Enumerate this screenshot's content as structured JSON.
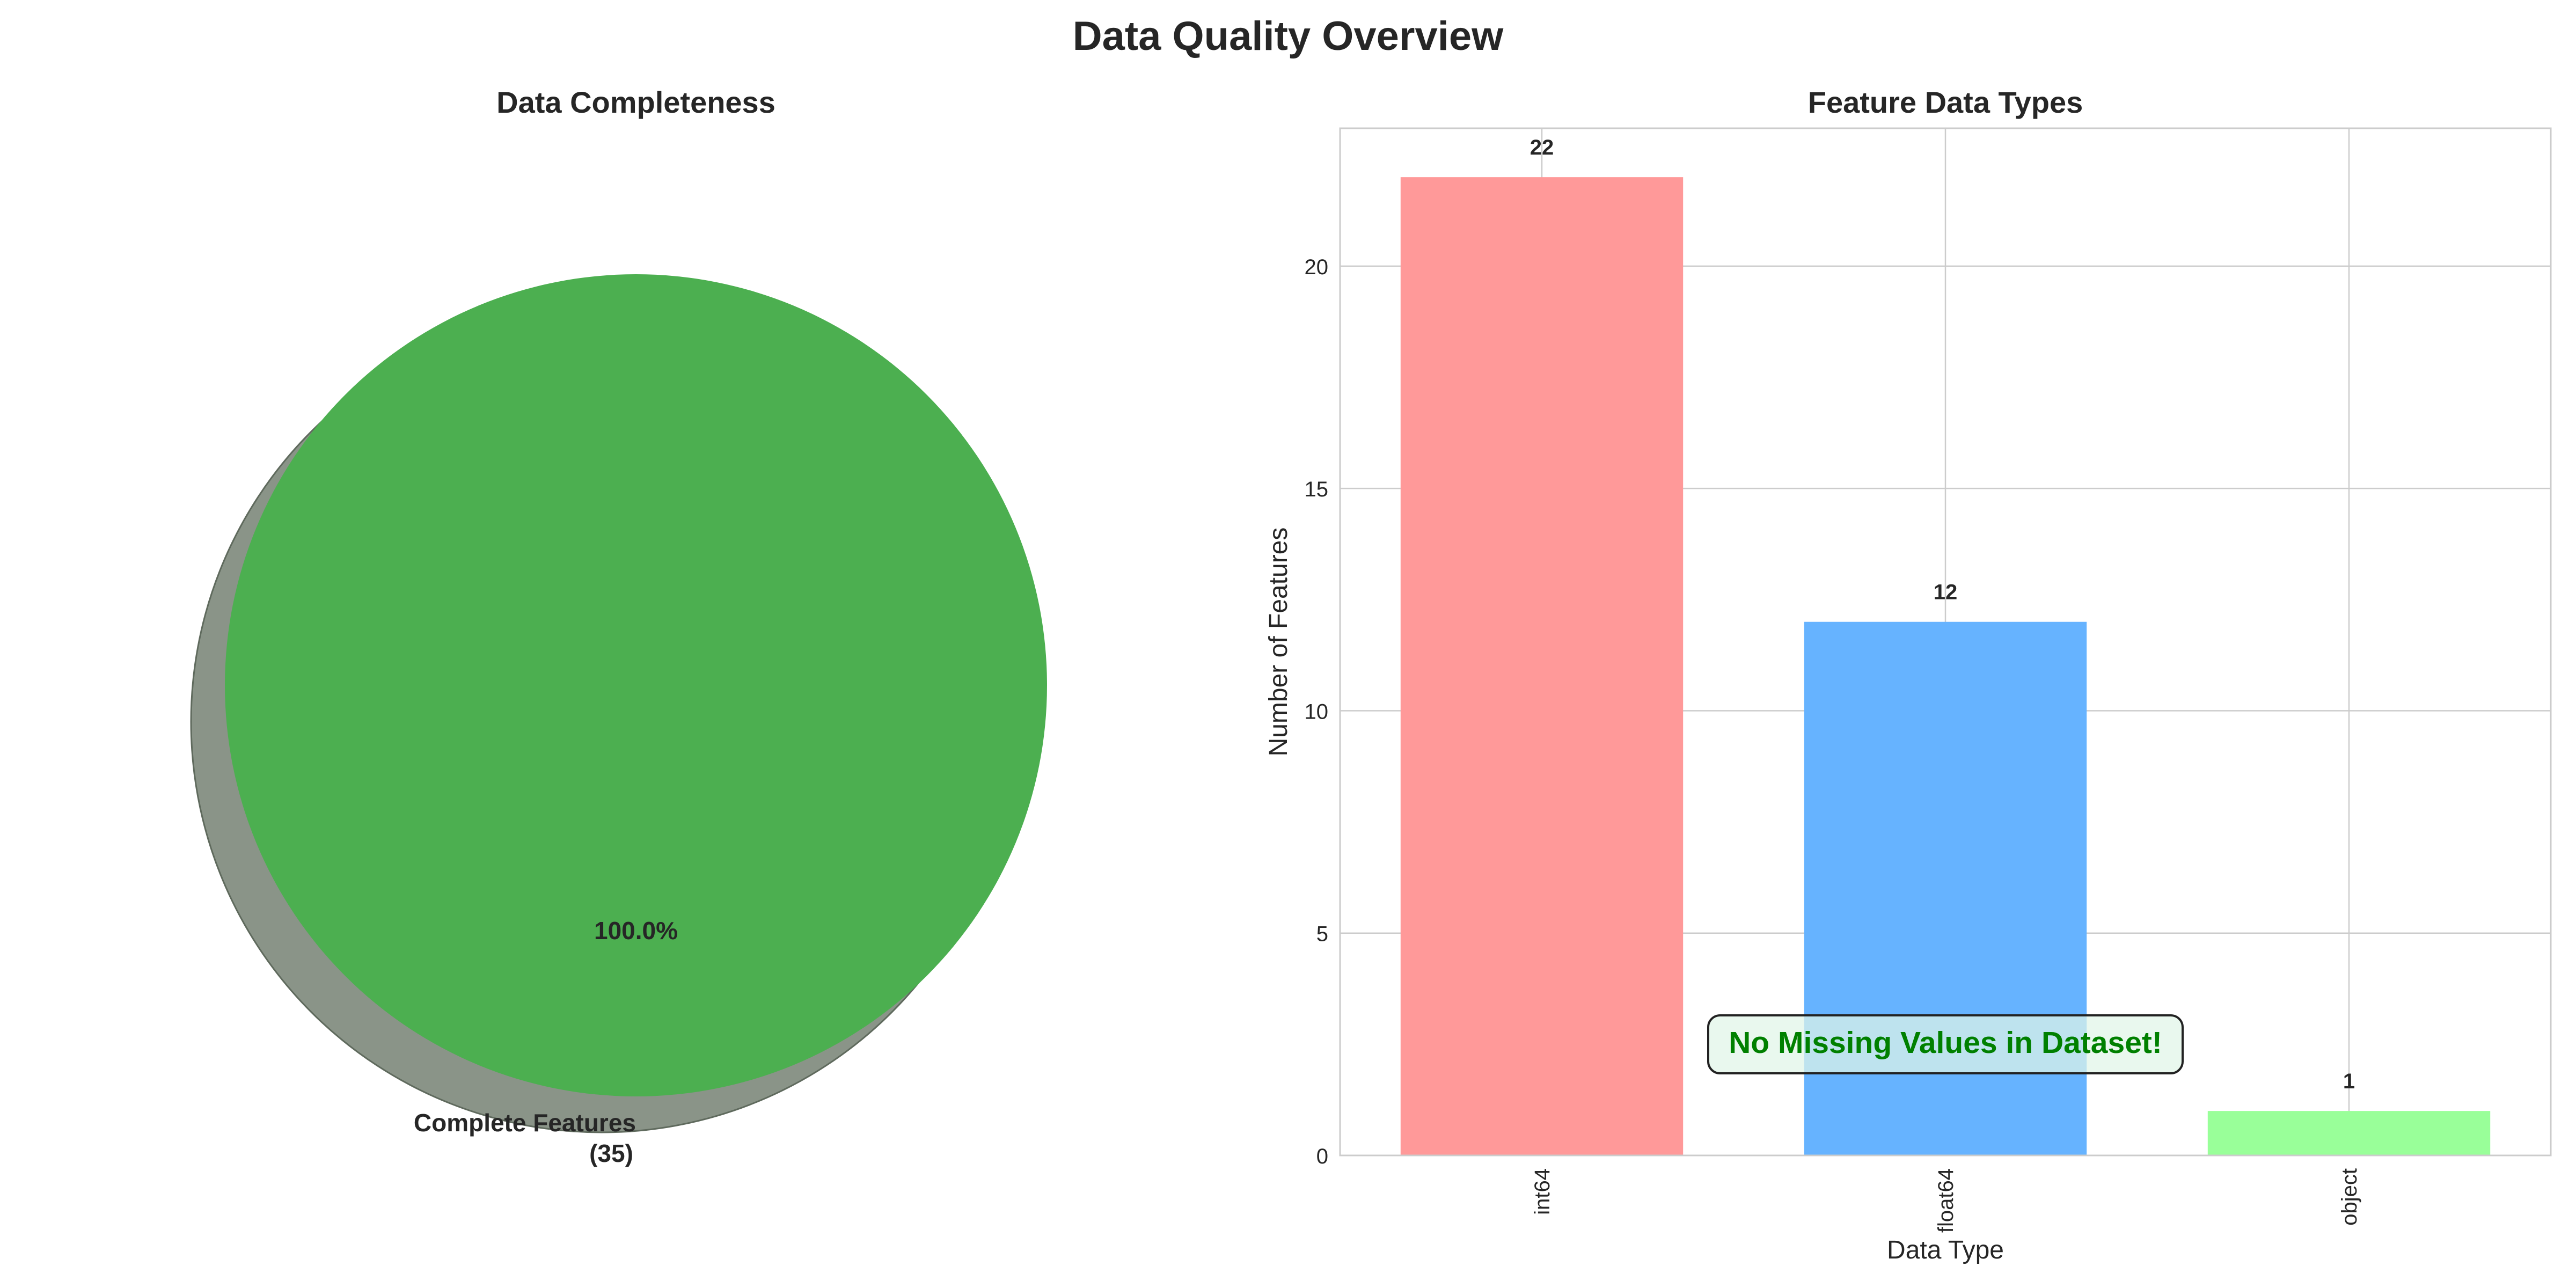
{
  "figure": {
    "title": "Data Quality Overview"
  },
  "chart_data": [
    {
      "type": "pie",
      "title": "Data Completeness",
      "slices": [
        {
          "label": "Complete Features",
          "label_count": "(35)",
          "value": 35,
          "percent_label": "100.0%",
          "color": "#4caf50"
        }
      ],
      "shadow": true,
      "shadow_color": "#8a9488"
    },
    {
      "type": "bar",
      "title": "Feature Data Types",
      "xlabel": "Data Type",
      "ylabel": "Number of Features",
      "categories": [
        "int64",
        "float64",
        "object"
      ],
      "values": [
        22,
        12,
        1
      ],
      "value_labels": [
        "22",
        "12",
        "1"
      ],
      "colors": [
        "#ff9999",
        "#66b3ff",
        "#99ff99"
      ],
      "ylim": [
        0,
        23.1
      ],
      "yticks": [
        0,
        5,
        10,
        15,
        20
      ],
      "grid": true,
      "annotation": {
        "text": "No Missing Values in Dataset!",
        "color": "#008000",
        "box_color": "#e0f5e8"
      }
    }
  ]
}
